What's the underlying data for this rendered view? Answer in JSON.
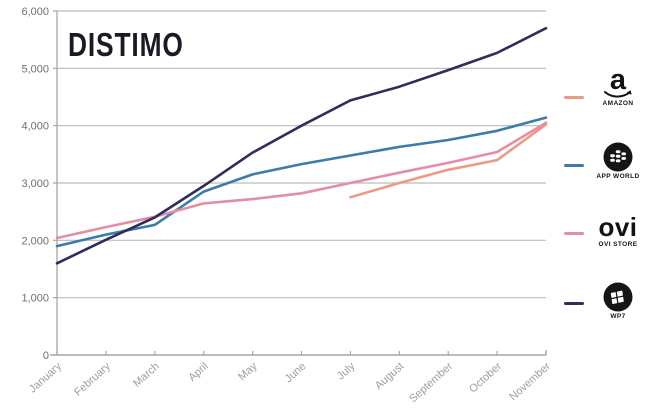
{
  "logo": {
    "text": "DISTIMO"
  },
  "colors": {
    "grid": "#bcbcbc",
    "axis": "#a6a6a6",
    "y_label": "#6f6f6f",
    "x_label": "#9e9e9e",
    "logo_text": "#1b1a24"
  },
  "chart_data": {
    "type": "line",
    "title": "",
    "xlabel": "",
    "ylabel": "",
    "categories": [
      "January",
      "February",
      "March",
      "April",
      "May",
      "June",
      "July",
      "August",
      "September",
      "October",
      "November"
    ],
    "y_ticks": [
      {
        "value": 0,
        "label": "0"
      },
      {
        "value": 1000,
        "label": "1,000"
      },
      {
        "value": 2000,
        "label": "2,000"
      },
      {
        "value": 3000,
        "label": "3,000"
      },
      {
        "value": 4000,
        "label": "4,000"
      },
      {
        "value": 5000,
        "label": "5,000"
      },
      {
        "value": 6000,
        "label": "6,000"
      }
    ],
    "ylim": [
      0,
      6000
    ],
    "grid": "horizontal",
    "legend_position": "right",
    "series": [
      {
        "name": "AMAZON",
        "color": "#ec9b82",
        "values": [
          null,
          null,
          null,
          null,
          null,
          null,
          2750,
          3000,
          3230,
          3400,
          4020
        ]
      },
      {
        "name": "APP WORLD",
        "color": "#3b7ca9",
        "values": [
          1900,
          2100,
          2270,
          2850,
          3150,
          3330,
          3480,
          3630,
          3750,
          3910,
          4140
        ]
      },
      {
        "name": "OVI STORE",
        "color": "#e48da6",
        "values": [
          2040,
          2230,
          2410,
          2645,
          2720,
          2820,
          3000,
          3180,
          3350,
          3540,
          4050
        ]
      },
      {
        "name": "WP7",
        "color": "#2f2d5b",
        "values": [
          1600,
          2010,
          2400,
          2950,
          3530,
          4000,
          4440,
          4680,
          4970,
          5270,
          5700
        ]
      }
    ]
  },
  "legend": {
    "items": [
      {
        "label": "AMAZON",
        "color": "#ec9b82",
        "icon": "amazon-a-icon",
        "logo_text": "a"
      },
      {
        "label": "APP WORLD",
        "color": "#3b7ca9",
        "icon": "blackberry-icon"
      },
      {
        "label": "OVI STORE",
        "color": "#e48da6",
        "icon": "ovi-logo",
        "logo_text": "ovi"
      },
      {
        "label": "WP7",
        "color": "#2f2d5b",
        "icon": "windows-icon"
      }
    ]
  }
}
